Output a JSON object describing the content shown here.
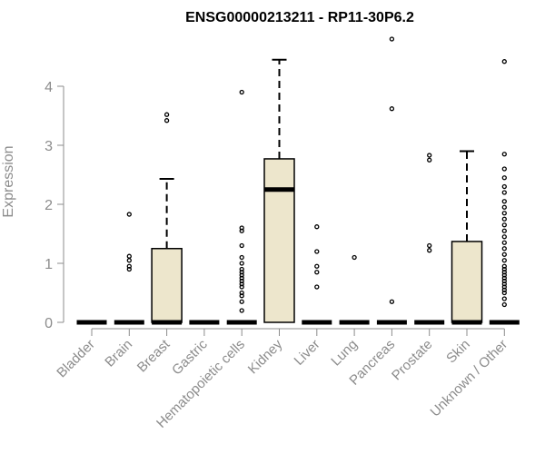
{
  "chart_data": {
    "type": "boxplot",
    "title": "ENSG00000213211 - RP11-30P6.2",
    "ylabel": "Expression",
    "xlabel": "",
    "ylim": [
      0,
      4.9
    ],
    "yticks": [
      0,
      1,
      2,
      3,
      4
    ],
    "grid": false,
    "legend": "none",
    "colors": {
      "box_fill": "#ede6cc",
      "box_stroke": "#000000",
      "axis": "#8c8c8c",
      "tick_label": "#8c8c8c",
      "title": "#000000"
    },
    "categories": [
      "Bladder",
      "Brain",
      "Breast",
      "Gastric",
      "Hematopoietic cells",
      "Kidney",
      "Liver",
      "Lung",
      "Pancreas",
      "Prostate",
      "Skin",
      "Unknown / Other"
    ],
    "boxes": [
      {
        "category": "Bladder",
        "min": 0,
        "q1": 0,
        "median": 0,
        "q3": 0,
        "max": 0,
        "outliers": []
      },
      {
        "category": "Brain",
        "min": 0,
        "q1": 0,
        "median": 0,
        "q3": 0,
        "max": 0,
        "outliers": [
          0.9,
          0.95,
          1.05,
          1.12,
          1.83
        ]
      },
      {
        "category": "Breast",
        "min": 0,
        "q1": 0,
        "median": 0,
        "q3": 1.25,
        "max": 2.43,
        "outliers": [
          3.42,
          3.52
        ]
      },
      {
        "category": "Gastric",
        "min": 0,
        "q1": 0,
        "median": 0,
        "q3": 0,
        "max": 0,
        "outliers": []
      },
      {
        "category": "Hematopoietic cells",
        "min": 0,
        "q1": 0,
        "median": 0,
        "q3": 0,
        "max": 0,
        "outliers": [
          0.2,
          0.35,
          0.45,
          0.5,
          0.6,
          0.65,
          0.7,
          0.75,
          0.8,
          0.85,
          0.9,
          1.0,
          1.1,
          1.3,
          1.55,
          1.6,
          3.9
        ]
      },
      {
        "category": "Kidney",
        "min": 0,
        "q1": 0,
        "median": 2.25,
        "q3": 2.77,
        "max": 4.45,
        "outliers": []
      },
      {
        "category": "Liver",
        "min": 0,
        "q1": 0,
        "median": 0,
        "q3": 0,
        "max": 0,
        "outliers": [
          0.6,
          0.85,
          0.95,
          1.2,
          1.62
        ]
      },
      {
        "category": "Lung",
        "min": 0,
        "q1": 0,
        "median": 0,
        "q3": 0,
        "max": 0,
        "outliers": [
          1.1
        ]
      },
      {
        "category": "Pancreas",
        "min": 0,
        "q1": 0,
        "median": 0,
        "q3": 0,
        "max": 0,
        "outliers": [
          0.35,
          3.62,
          4.8
        ]
      },
      {
        "category": "Prostate",
        "min": 0,
        "q1": 0,
        "median": 0,
        "q3": 0,
        "max": 0,
        "outliers": [
          1.22,
          1.3,
          2.75,
          2.83
        ]
      },
      {
        "category": "Skin",
        "min": 0,
        "q1": 0,
        "median": 0,
        "q3": 1.37,
        "max": 2.9,
        "outliers": []
      },
      {
        "category": "Unknown / Other",
        "min": 0,
        "q1": 0,
        "median": 0,
        "q3": 0,
        "max": 0,
        "outliers": [
          0.3,
          0.4,
          0.5,
          0.55,
          0.6,
          0.65,
          0.7,
          0.75,
          0.8,
          0.85,
          0.9,
          0.95,
          1.05,
          1.15,
          1.25,
          1.35,
          1.45,
          1.55,
          1.65,
          1.75,
          1.85,
          1.95,
          2.05,
          2.2,
          2.3,
          2.45,
          2.6,
          2.85,
          4.42
        ]
      }
    ]
  }
}
